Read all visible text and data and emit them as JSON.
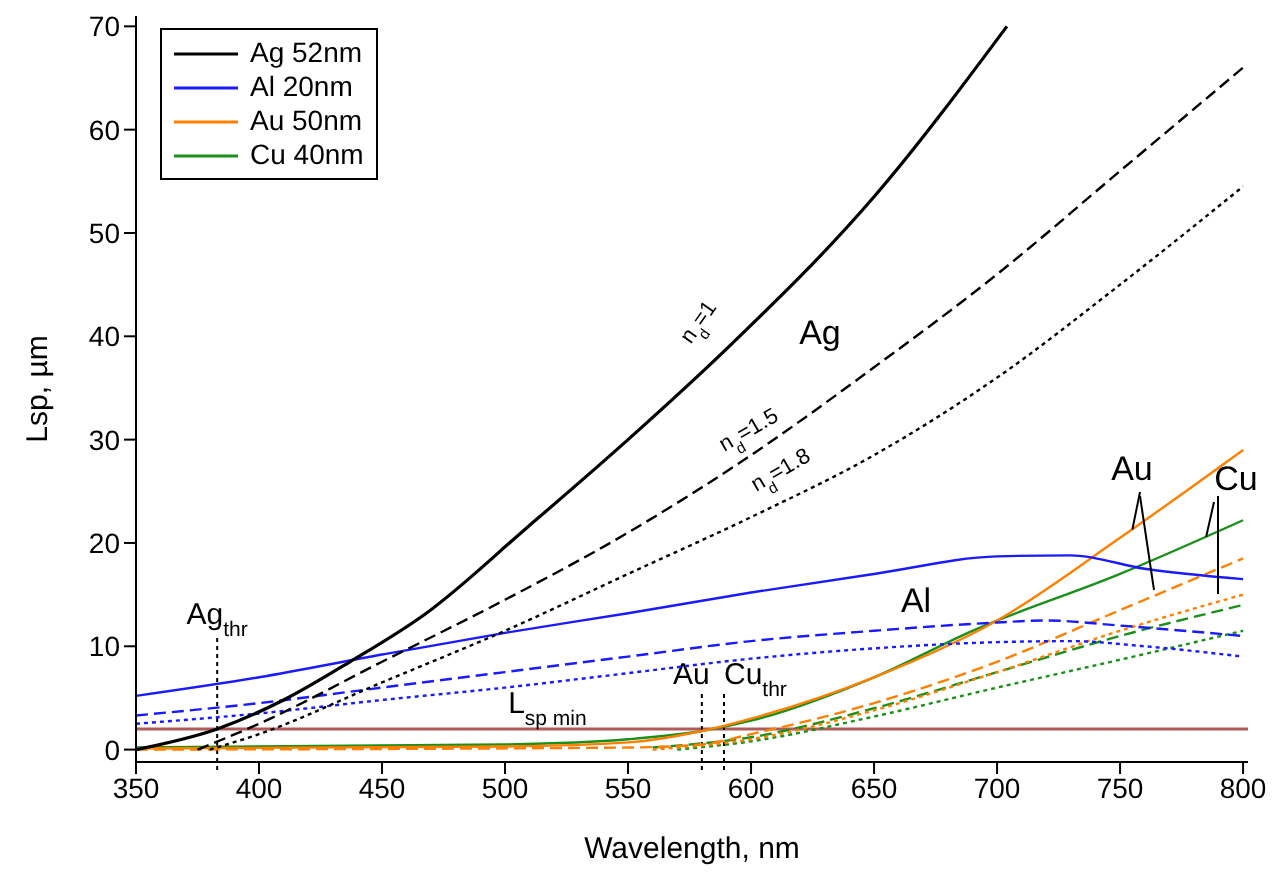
{
  "chart_data": {
    "type": "line",
    "xlabel": "Wavelength, nm",
    "ylabel": "Lsp, µm",
    "xlim": [
      350,
      802
    ],
    "xticks": [
      350,
      400,
      450,
      500,
      550,
      600,
      650,
      700,
      750,
      800
    ],
    "ylim": [
      -1.2,
      71
    ],
    "yticks": [
      0,
      10,
      20,
      30,
      40,
      50,
      60,
      70
    ],
    "grid": false,
    "legend": "top left",
    "marker": "none",
    "series": [
      {
        "name": "Ag 52nm",
        "color": "#000000",
        "line_style": "solid",
        "x": [
          350,
          383,
          410,
          437,
          468,
          509,
          550,
          591,
          650,
          704
        ],
        "values": [
          0,
          2,
          4.8,
          8.5,
          13.2,
          21.5,
          30,
          39,
          53.5,
          70
        ]
      },
      {
        "color": "#000000",
        "line_style": "dashed",
        "x": [
          375,
          400,
          450,
          500,
          550,
          600,
          650,
          700,
          750,
          800
        ],
        "values": [
          0,
          2.5,
          8.5,
          14.5,
          21,
          28.5,
          37,
          46,
          56,
          66
        ]
      },
      {
        "color": "#000000",
        "line_style": "dotted",
        "x": [
          380,
          400,
          450,
          500,
          550,
          600,
          650,
          700,
          750,
          800
        ],
        "values": [
          0,
          1.5,
          6.5,
          11.5,
          17,
          22.5,
          28.5,
          36,
          45,
          54.5
        ]
      },
      {
        "name": "Al 20nm",
        "color": "#1a1aff",
        "line_style": "solid",
        "x": [
          350,
          400,
          450,
          500,
          550,
          600,
          650,
          700,
          730,
          760,
          800
        ],
        "values": [
          5.2,
          7,
          9.2,
          11.3,
          13.2,
          15.2,
          17,
          18.7,
          18.8,
          17.5,
          16.5
        ]
      },
      {
        "color": "#1a1aff",
        "line_style": "dashed",
        "x": [
          350,
          400,
          450,
          500,
          550,
          600,
          650,
          700,
          720,
          750,
          800
        ],
        "values": [
          3.3,
          4.5,
          6,
          7.5,
          9,
          10.5,
          11.5,
          12.3,
          12.5,
          12,
          11
        ]
      },
      {
        "color": "#1a1aff",
        "line_style": "dotted",
        "x": [
          350,
          400,
          450,
          500,
          550,
          600,
          650,
          700,
          730,
          760,
          800
        ],
        "values": [
          2.5,
          3.5,
          4.8,
          6,
          7.4,
          8.8,
          9.8,
          10.4,
          10.5,
          10,
          9
        ]
      },
      {
        "name": "Au 50nm",
        "color": "#ff8000",
        "line_style": "solid",
        "x": [
          350,
          500,
          550,
          580,
          600,
          650,
          700,
          750,
          800
        ],
        "values": [
          0.1,
          0.3,
          0.7,
          1.8,
          3,
          7,
          12.5,
          20.5,
          29
        ]
      },
      {
        "color": "#ff8000",
        "line_style": "dashed",
        "x": [
          350,
          550,
          580,
          600,
          650,
          700,
          750,
          800
        ],
        "values": [
          0,
          0.2,
          0.5,
          1.5,
          4.5,
          8.5,
          13.5,
          18.5
        ]
      },
      {
        "color": "#ff8000",
        "line_style": "dotted",
        "x": [
          560,
          600,
          650,
          700,
          750,
          800
        ],
        "values": [
          0,
          1,
          3.8,
          7.5,
          11.5,
          15
        ]
      },
      {
        "name": "Cu 40nm",
        "color": "#1a8f1a",
        "line_style": "solid",
        "x": [
          350,
          500,
          550,
          580,
          600,
          650,
          690,
          750,
          800
        ],
        "values": [
          0.2,
          0.5,
          1,
          1.8,
          2.8,
          7,
          11.5,
          17,
          22.2
        ]
      },
      {
        "color": "#1a8f1a",
        "line_style": "dashed",
        "x": [
          560,
          600,
          650,
          700,
          750,
          800
        ],
        "values": [
          0.2,
          1.2,
          4,
          7.5,
          11,
          14
        ]
      },
      {
        "color": "#1a8f1a",
        "line_style": "dotted",
        "x": [
          570,
          600,
          650,
          700,
          750,
          800
        ],
        "values": [
          0,
          0.8,
          3.2,
          6,
          8.7,
          11.5
        ]
      }
    ],
    "ref_lines": [
      {
        "axis": "y",
        "value": 2,
        "label": "L$_{sp min}$",
        "color": "#b05a5a",
        "line_style": "solid"
      },
      {
        "axis": "x",
        "value": 383,
        "label": "Ag$_{thr}$",
        "color": "#000000",
        "line_style": "dotted"
      },
      {
        "axis": "x",
        "value": 580,
        "label": "Au",
        "color": "#000000",
        "line_style": "dotted"
      },
      {
        "axis": "x",
        "value": 589,
        "label": "Cu$_{thr}$",
        "color": "#000000",
        "line_style": "dotted"
      }
    ],
    "annotations": [
      "Ag",
      "Al",
      {
        "text": "Au",
        "x": 755,
        "y": 21.3
      },
      {
        "text": "Cu",
        "x": 785,
        "y": 20.6
      },
      "n$_{d}$=1",
      "n$_{d}$=1.5",
      "n$_{d}$=1.8"
    ]
  }
}
